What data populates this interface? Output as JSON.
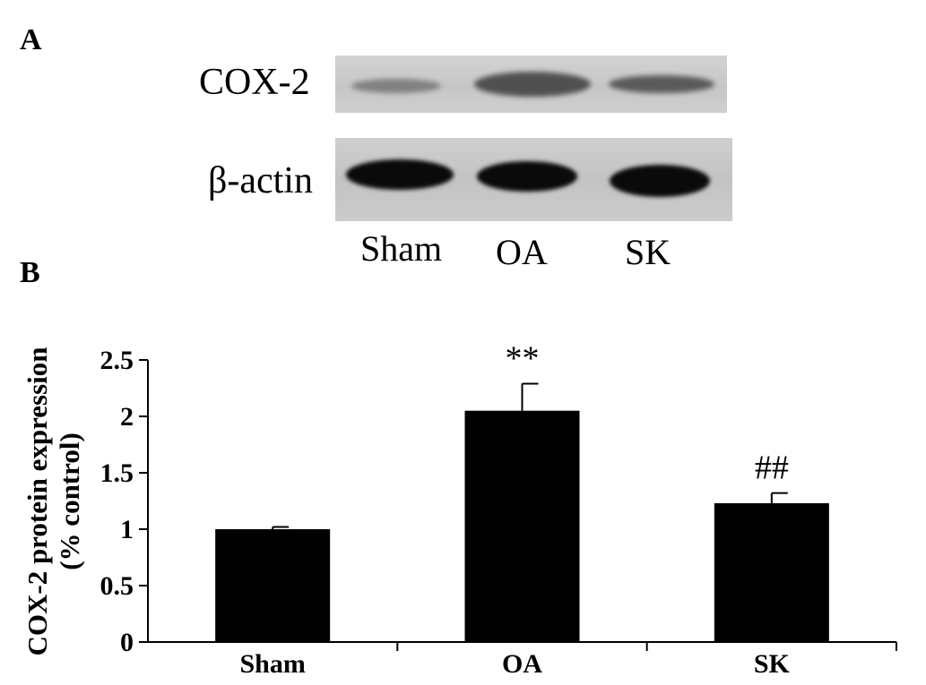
{
  "panels": {
    "a": "A",
    "b": "B"
  },
  "blot": {
    "labels": [
      "COX-2",
      "β-actin"
    ],
    "lanes": [
      "Sham",
      "OA",
      "SK"
    ]
  },
  "chart_data": {
    "type": "bar",
    "categories": [
      "Sham",
      "OA",
      "SK"
    ],
    "values": [
      1.0,
      2.05,
      1.23
    ],
    "error": [
      0.02,
      0.24,
      0.09
    ],
    "annotations": [
      "",
      "**",
      "##"
    ],
    "ylabel_line1": "COX-2  protein expression",
    "ylabel_line2": "(% control)",
    "xlabel": "",
    "ylim": [
      0,
      2.5
    ],
    "yticks": [
      "0",
      "0.5",
      "1",
      "1.5",
      "2",
      "2.5"
    ],
    "grid": false,
    "bar_color": "#000000"
  }
}
